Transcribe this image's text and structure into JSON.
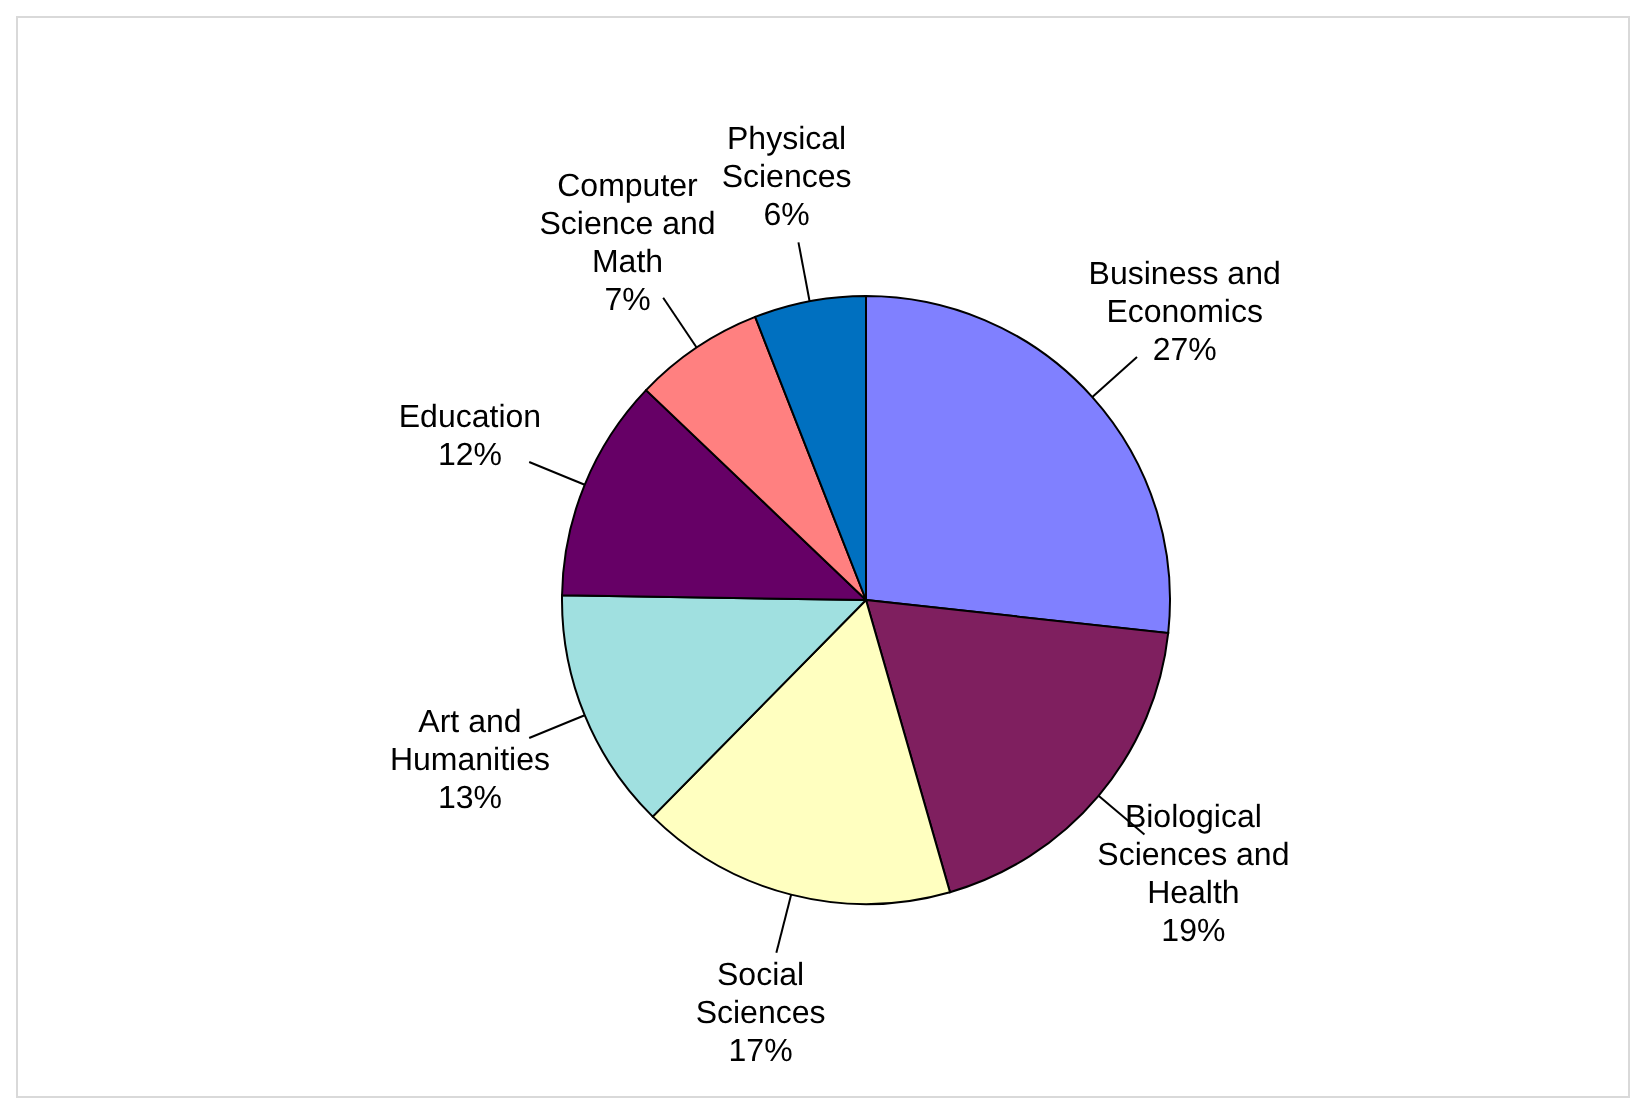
{
  "chart_data": {
    "type": "pie",
    "categories": [
      "Business and Economics",
      "Biological Sciences and Health",
      "Social Sciences",
      "Art and Humanities",
      "Education",
      "Computer Science and Math",
      "Physical Sciences"
    ],
    "values": [
      27,
      19,
      17,
      13,
      12,
      7,
      6
    ],
    "value_labels": [
      "27%",
      "19%",
      "17%",
      "13%",
      "12%",
      "7%",
      "6%"
    ],
    "colors": [
      "#8080ff",
      "#7f1f5f",
      "#ffffc0",
      "#a0e0e0",
      "#660066",
      "#ff8080",
      "#0070c0"
    ]
  }
}
